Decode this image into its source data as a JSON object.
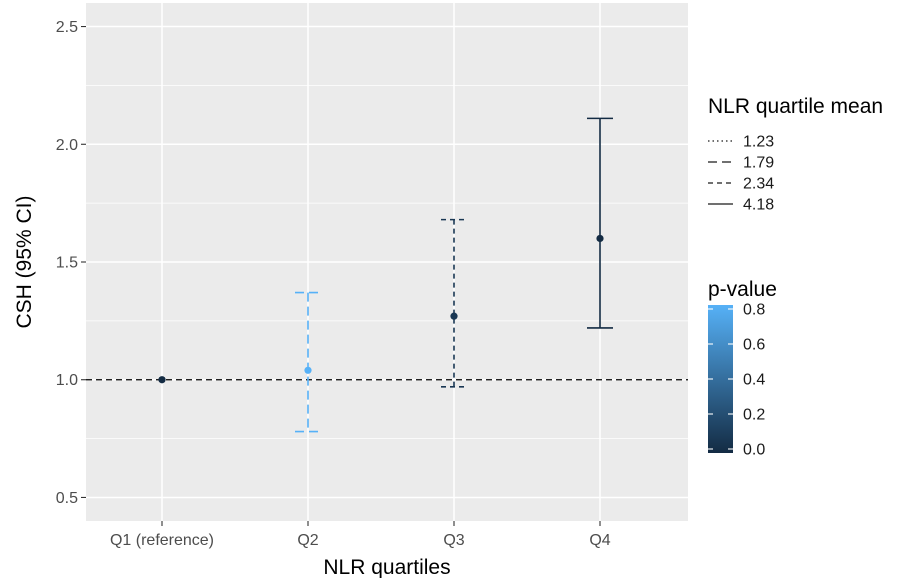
{
  "chart_data": {
    "type": "errorbar",
    "xlabel": "NLR quartiles",
    "ylabel": "CSH (95% CI)",
    "categories": [
      "Q1 (reference)",
      "Q2",
      "Q3",
      "Q4"
    ],
    "points": [
      {
        "category": "Q1 (reference)",
        "estimate": 1.0,
        "lower": null,
        "upper": null,
        "p_value": 0.0,
        "nlr_mean": "1.23"
      },
      {
        "category": "Q2",
        "estimate": 1.04,
        "lower": 0.78,
        "upper": 1.37,
        "p_value": 0.8,
        "nlr_mean": "1.79"
      },
      {
        "category": "Q3",
        "estimate": 1.27,
        "lower": 0.97,
        "upper": 1.68,
        "p_value": 0.07,
        "nlr_mean": "2.34"
      },
      {
        "category": "Q4",
        "estimate": 1.6,
        "lower": 1.22,
        "upper": 2.11,
        "p_value": 0.0,
        "nlr_mean": "4.18"
      }
    ],
    "ylim": [
      0.4,
      2.6
    ],
    "yticks": [
      "0.5",
      "1.0",
      "1.5",
      "2.0",
      "2.5"
    ],
    "ytick_values": [
      0.5,
      1.0,
      1.5,
      2.0,
      2.5
    ],
    "reference_line": 1.0,
    "grid": true,
    "legend_linetype": {
      "title": "NLR quartile mean",
      "entries": [
        {
          "label": "1.23",
          "dash": "dotted"
        },
        {
          "label": "1.79",
          "dash": "longdash"
        },
        {
          "label": "2.34",
          "dash": "dashed"
        },
        {
          "label": "4.18",
          "dash": "solid"
        }
      ]
    },
    "legend_color": {
      "title": "p-value",
      "breaks": [
        "0.8",
        "0.6",
        "0.4",
        "0.2",
        "0.0"
      ],
      "break_values": [
        0.8,
        0.6,
        0.4,
        0.2,
        0.0
      ],
      "range": [
        0.0,
        0.8
      ],
      "low_color": "#132B43",
      "high_color": "#56B1F7"
    },
    "legend_placement": "right"
  },
  "colors": {
    "panel_background": "#EBEBEB",
    "gridline": "#FFFFFF"
  }
}
